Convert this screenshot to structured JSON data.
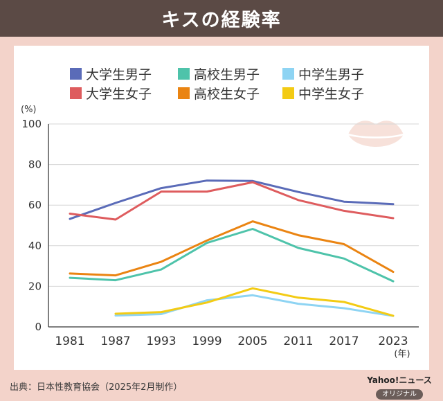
{
  "header": {
    "title": "キスの経験率"
  },
  "chart_data": {
    "type": "line",
    "title": "キスの経験率",
    "ylabel": "(%)",
    "xlabel": "(年)",
    "ylim": [
      0,
      100
    ],
    "yticks": [
      0,
      20,
      40,
      60,
      80,
      100
    ],
    "grid": true,
    "legend_position": "top",
    "x": [
      "1981",
      "1987",
      "1993",
      "1999",
      "2005",
      "2011",
      "2017",
      "2023"
    ],
    "series": [
      {
        "name": "大学生男子",
        "color": "#5a6bb8",
        "values": [
          53.2,
          61.1,
          68.4,
          72.1,
          71.9,
          66.5,
          61.7,
          60.5
        ]
      },
      {
        "name": "高校生男子",
        "color": "#4ec3aa",
        "values": [
          24.2,
          23.0,
          28.3,
          41.4,
          48.3,
          38.9,
          33.7,
          22.5
        ]
      },
      {
        "name": "中学生男子",
        "color": "#8ed4f3",
        "values": [
          null,
          5.6,
          6.3,
          13.1,
          15.6,
          11.4,
          9.2,
          5.4
        ]
      },
      {
        "name": "大学生女子",
        "color": "#de5c5e",
        "values": [
          55.8,
          52.9,
          66.7,
          66.7,
          71.3,
          62.5,
          57.2,
          53.6
        ]
      },
      {
        "name": "高校生女子",
        "color": "#ea8412",
        "values": [
          26.3,
          25.4,
          32.1,
          42.6,
          52.0,
          45.2,
          40.8,
          27.1
        ]
      },
      {
        "name": "中学生女子",
        "color": "#f3cb14",
        "values": [
          null,
          6.5,
          7.3,
          12.0,
          19.0,
          14.4,
          12.3,
          5.5
        ]
      }
    ]
  },
  "footer": {
    "source": "出典：日本性教育協会（2025年2月制作）",
    "brand": "Yahoo!ニュース",
    "brand_tag": "オリジナル"
  },
  "decoration": {
    "lips": "lips-icon",
    "lips_color": "#f7e1da"
  }
}
